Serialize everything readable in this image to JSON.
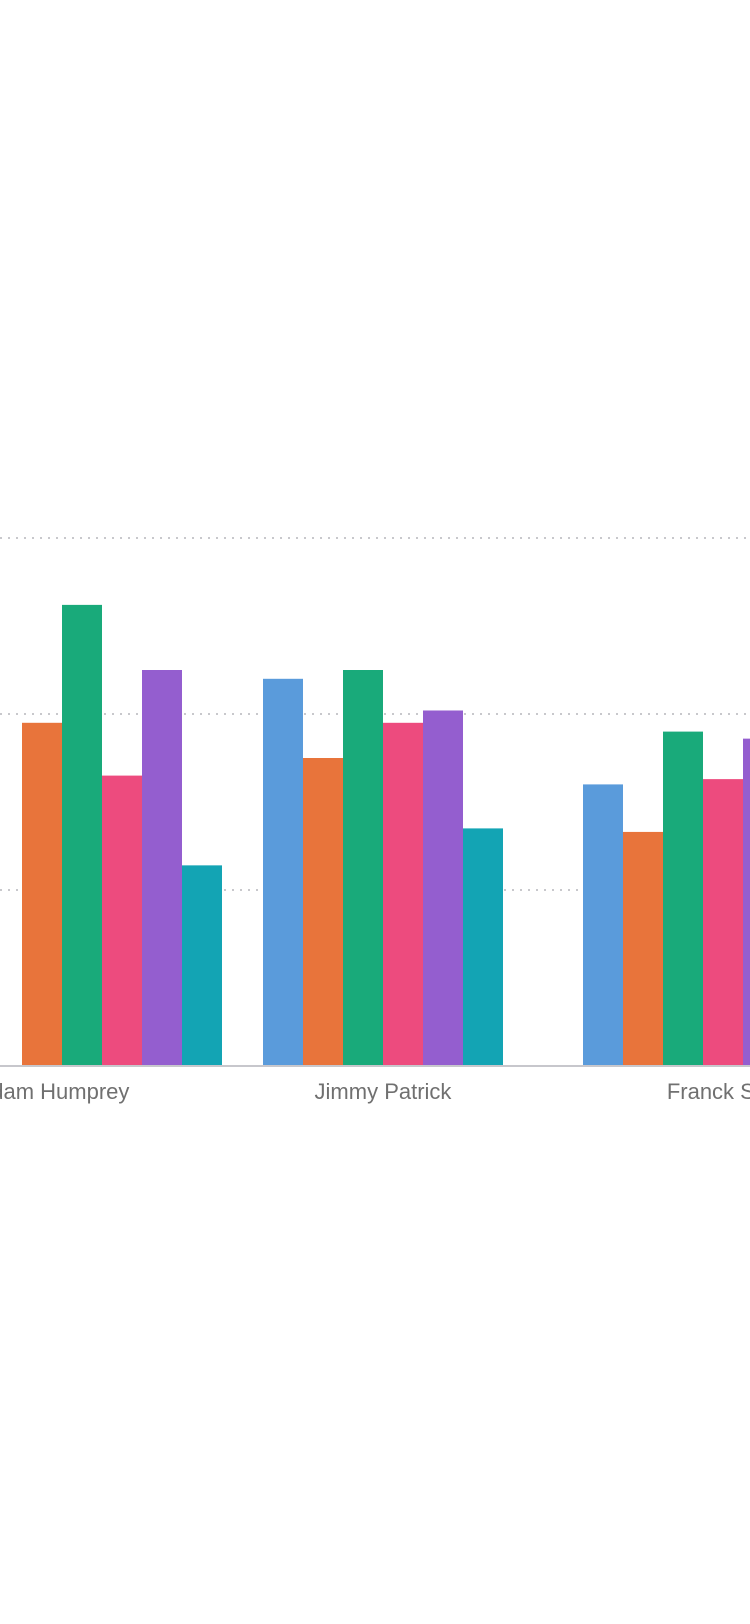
{
  "chart_data": {
    "type": "bar",
    "categories": [
      "Adam Humprey",
      "Jimmy Patrick",
      "Franck Syr"
    ],
    "series": [
      {
        "color": "#5A9BDB",
        "values": [
          null,
          2.2,
          1.6
        ]
      },
      {
        "color": "#E8743B",
        "values": [
          1.95,
          1.75,
          1.33
        ]
      },
      {
        "color": "#19AA7A",
        "values": [
          2.62,
          2.25,
          1.9
        ]
      },
      {
        "color": "#ED4B7E",
        "values": [
          1.65,
          1.95,
          1.63
        ]
      },
      {
        "color": "#945ECF",
        "values": [
          2.25,
          2.02,
          1.86
        ]
      },
      {
        "color": "#13A4B4",
        "values": [
          1.14,
          1.35,
          null
        ]
      }
    ],
    "ylim": [
      0,
      3
    ],
    "grid": true,
    "legend": "none",
    "xlabel": "",
    "ylabel": "",
    "title": ""
  }
}
